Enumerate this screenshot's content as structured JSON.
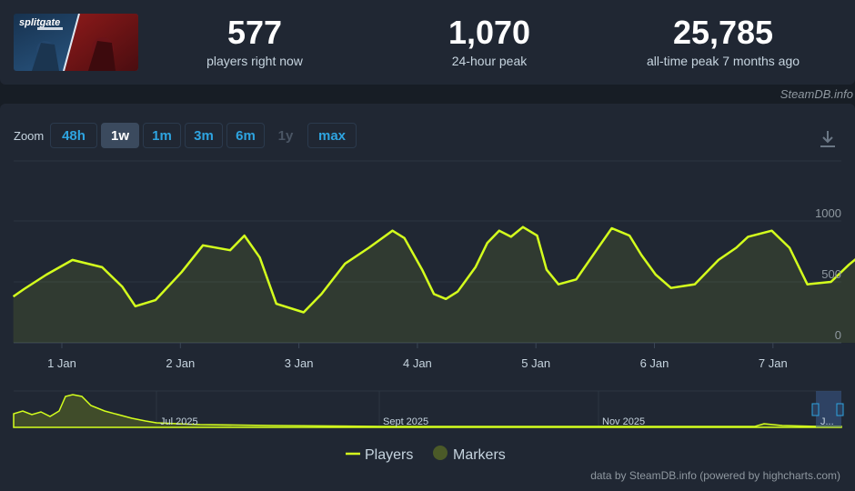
{
  "stats": {
    "players_now": {
      "value": "577",
      "label": "players right now"
    },
    "peak_24h": {
      "value": "1,070",
      "label": "24-hour peak"
    },
    "all_time": {
      "value": "25,785",
      "label": "all-time peak 7 months ago"
    }
  },
  "credit_top": "SteamDB.info",
  "zoom": {
    "label": "Zoom",
    "buttons": [
      "48h",
      "1w",
      "1m",
      "3m",
      "6m",
      "1y",
      "max"
    ],
    "active": "1w",
    "disabled": [
      "1y"
    ]
  },
  "legend": {
    "players": "Players",
    "markers": "Markers"
  },
  "credit_bottom": "data by SteamDB.info (powered by highcharts.com)",
  "colors": {
    "series": "#d4ff1d",
    "markers": "#4b5a28",
    "accent": "#2ea4e0"
  },
  "chart_data": {
    "type": "line",
    "series": [
      {
        "name": "Players",
        "x_days": [
          0,
          0.09,
          0.28,
          0.5,
          0.75,
          0.92,
          1.03,
          1.2,
          1.42,
          1.6,
          1.83,
          1.95,
          2.08,
          2.22,
          2.45,
          2.6,
          2.8,
          3.0,
          3.1,
          3.2,
          3.3,
          3.45,
          3.55,
          3.65,
          3.75,
          3.9,
          4.0,
          4.1,
          4.2,
          4.3,
          4.42,
          4.5,
          4.6,
          4.75,
          4.92,
          5.05,
          5.2,
          5.3,
          5.42,
          5.55,
          5.75,
          5.95,
          6.1,
          6.2,
          6.4,
          6.55,
          6.7,
          6.9,
          7.05,
          7.2,
          7.3,
          7.45,
          7.52,
          7.6
        ],
        "values": [
          380,
          440,
          560,
          680,
          620,
          460,
          300,
          350,
          580,
          800,
          760,
          880,
          700,
          320,
          250,
          400,
          650,
          780,
          850,
          920,
          860,
          600,
          400,
          360,
          420,
          620,
          820,
          920,
          870,
          950,
          880,
          600,
          480,
          520,
          760,
          940,
          880,
          720,
          560,
          450,
          480,
          680,
          780,
          870,
          920,
          780,
          480,
          500,
          640,
          760,
          820,
          1000,
          870,
          650
        ]
      }
    ],
    "x_ticks": [
      "1 Jan",
      "2 Jan",
      "3 Jan",
      "4 Jan",
      "5 Jan",
      "6 Jan",
      "7 Jan"
    ],
    "ylim": [
      0,
      1000
    ],
    "y_ticks": [
      0,
      500,
      1000
    ],
    "navigator": {
      "labels": [
        "Jul 2025",
        "Sept 2025",
        "Nov 2025",
        "J..."
      ]
    }
  }
}
